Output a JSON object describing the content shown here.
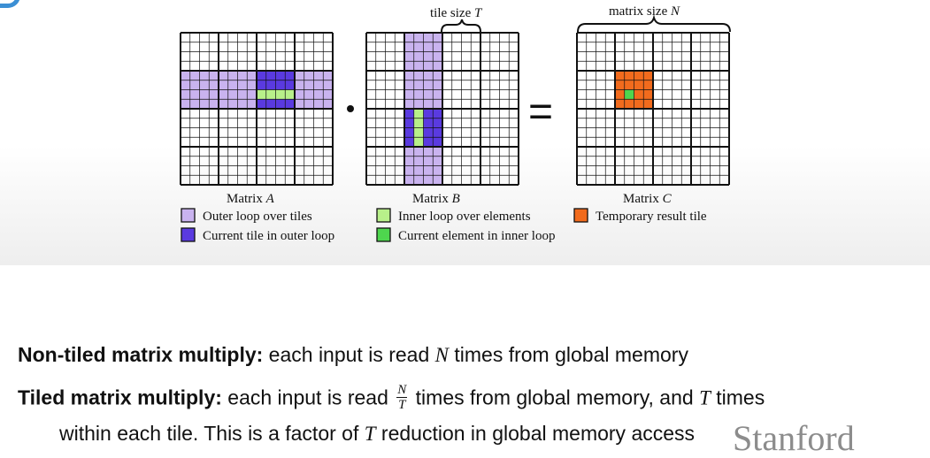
{
  "diagram": {
    "tile_size_label": "tile size",
    "tile_size_var": "T",
    "matrix_size_label": "matrix size",
    "matrix_size_var": "N",
    "multiply_symbol": "·",
    "equals_symbol": "=",
    "matrices": [
      {
        "prefix": "Matrix",
        "var": "A"
      },
      {
        "prefix": "Matrix",
        "var": "B"
      },
      {
        "prefix": "Matrix",
        "var": "C"
      }
    ],
    "legend": [
      {
        "label": "Outer loop over tiles",
        "color": "#c9b3ef"
      },
      {
        "label": "Current tile in outer loop",
        "color": "#5a3ae0"
      },
      {
        "label": "Inner loop over elements",
        "color": "#b8f08a"
      },
      {
        "label": "Current element in inner loop",
        "color": "#4ed64e"
      },
      {
        "label": "Temporary result tile",
        "color": "#f26b1d"
      }
    ]
  },
  "text": {
    "line1_bold": "Non-tiled matrix multiply:",
    "line1_a": " each input is read ",
    "line1_var": "N",
    "line1_b": " times from global memory",
    "line2_bold": "Tiled matrix multiply:",
    "line2_a": " each input is read ",
    "line2_frac_num": "N",
    "line2_frac_den": "T",
    "line2_b": " times from global memory, and ",
    "line2_var": "T",
    "line2_c": " times",
    "line3_a": "within each tile. This is a factor of ",
    "line3_var": "T",
    "line3_b": " reduction in global memory access"
  },
  "logo": "Stanford"
}
